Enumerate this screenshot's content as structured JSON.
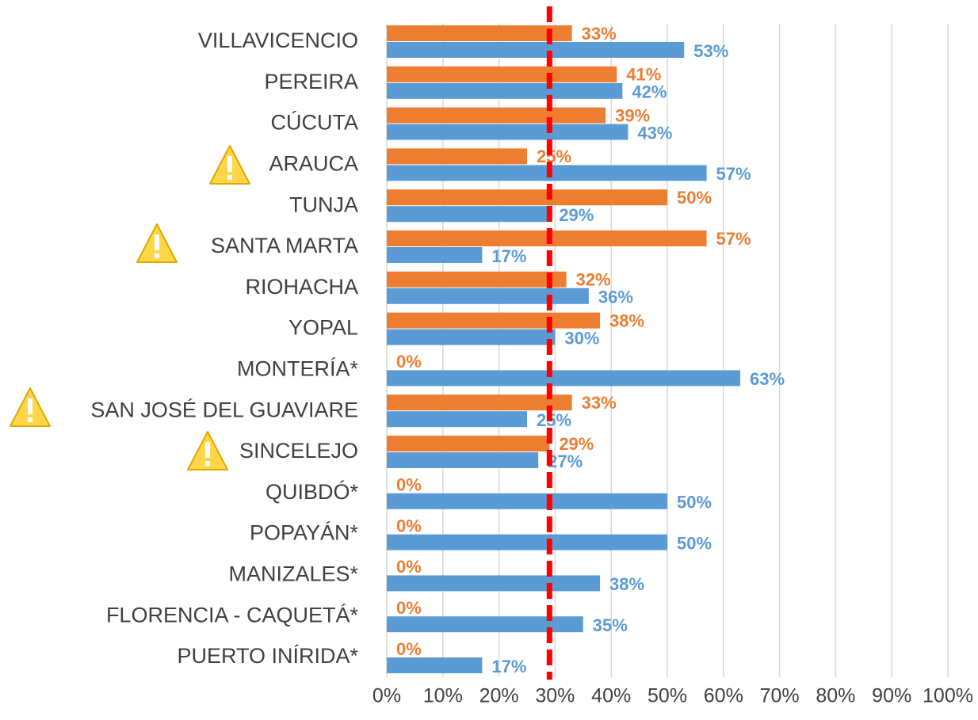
{
  "chart_data": {
    "type": "bar",
    "orientation": "horizontal",
    "categories": [
      "VILLAVICENCIO",
      "PEREIRA",
      "CÚCUTA",
      "ARAUCA",
      "TUNJA",
      "SANTA MARTA",
      "RIOHACHA",
      "YOPAL",
      "MONTERÍA*",
      "SAN JOSÉ DEL GUAVIARE",
      "SINCELEJO",
      "QUIBDÓ*",
      "POPAYÁN*",
      "MANIZALES*",
      "FLORENCIA - CAQUETÁ*",
      "PUERTO INÍRIDA*"
    ],
    "series": [
      {
        "color": "#ed7d31",
        "values": [
          33,
          41,
          39,
          25,
          50,
          57,
          32,
          38,
          0,
          33,
          29,
          0,
          0,
          0,
          0,
          0
        ],
        "value_labels": [
          "33%",
          "41%",
          "39%",
          "25%",
          "50%",
          "57%",
          "32%",
          "38%",
          "0%",
          "33%",
          "29%",
          "0%",
          "0%",
          "0%",
          "0%",
          "0%"
        ]
      },
      {
        "color": "#5b9bd5",
        "values": [
          53,
          42,
          43,
          57,
          29,
          17,
          36,
          30,
          63,
          25,
          27,
          50,
          50,
          38,
          35,
          17
        ],
        "value_labels": [
          "53%",
          "42%",
          "43%",
          "57%",
          "29%",
          "17%",
          "36%",
          "30%",
          "63%",
          "25%",
          "27%",
          "50%",
          "50%",
          "38%",
          "35%",
          "17%"
        ]
      }
    ],
    "xlim": [
      0,
      100
    ],
    "xticks": [
      {
        "value": 0,
        "label": "0%"
      },
      {
        "value": 10,
        "label": "10%"
      },
      {
        "value": 20,
        "label": "20%"
      },
      {
        "value": 30,
        "label": "30%"
      },
      {
        "value": 40,
        "label": "40%"
      },
      {
        "value": 50,
        "label": "50%"
      },
      {
        "value": 60,
        "label": "60%"
      },
      {
        "value": 70,
        "label": "70%"
      },
      {
        "value": 80,
        "label": "80%"
      },
      {
        "value": 90,
        "label": "90%"
      },
      {
        "value": 100,
        "label": "100%"
      }
    ],
    "grid": true,
    "reference_line": 29,
    "reference_color": "#ff0000"
  }
}
